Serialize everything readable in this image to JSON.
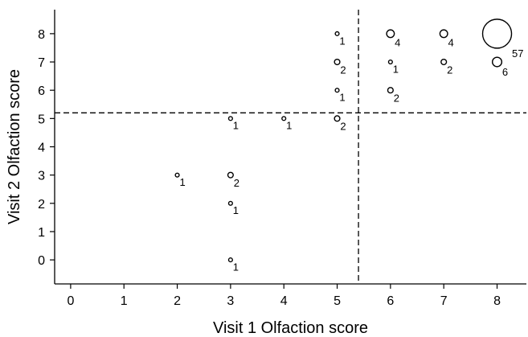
{
  "chart_data": {
    "type": "scatter",
    "title": "",
    "xlabel": "Visit 1 Olfaction score",
    "ylabel": "Visit 2 Olfaction score",
    "xlim": [
      -0.3,
      8.55
    ],
    "ylim": [
      -0.85,
      8.85
    ],
    "xticks": [
      0,
      1,
      2,
      3,
      4,
      5,
      6,
      7,
      8
    ],
    "yticks": [
      0,
      1,
      2,
      3,
      4,
      5,
      6,
      7,
      8
    ],
    "x_threshold": 5.4,
    "y_threshold": 5.2,
    "grid": false,
    "points": [
      {
        "x": 2,
        "y": 3,
        "count": 1
      },
      {
        "x": 3,
        "y": 0,
        "count": 1
      },
      {
        "x": 3,
        "y": 2,
        "count": 1
      },
      {
        "x": 3,
        "y": 3,
        "count": 2
      },
      {
        "x": 3,
        "y": 5,
        "count": 1
      },
      {
        "x": 4,
        "y": 5,
        "count": 1
      },
      {
        "x": 5,
        "y": 5,
        "count": 2
      },
      {
        "x": 5,
        "y": 6,
        "count": 1
      },
      {
        "x": 5,
        "y": 7,
        "count": 2
      },
      {
        "x": 5,
        "y": 8,
        "count": 1
      },
      {
        "x": 6,
        "y": 6,
        "count": 2
      },
      {
        "x": 6,
        "y": 7,
        "count": 1
      },
      {
        "x": 6,
        "y": 8,
        "count": 4
      },
      {
        "x": 7,
        "y": 7,
        "count": 2
      },
      {
        "x": 7,
        "y": 8,
        "count": 4
      },
      {
        "x": 8,
        "y": 7,
        "count": 6
      },
      {
        "x": 8,
        "y": 8,
        "count": 57
      }
    ]
  }
}
